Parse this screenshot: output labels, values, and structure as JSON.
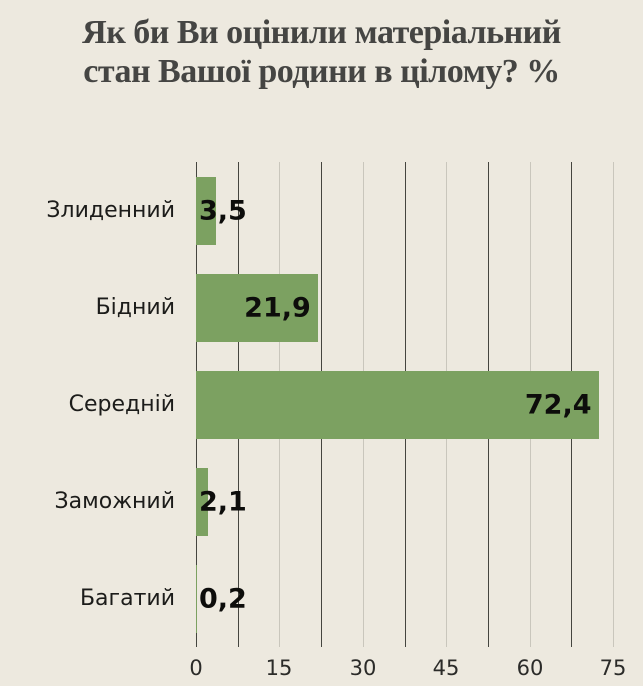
{
  "title": {
    "line1": "Як би Ви оцінили матеріальний",
    "line2": "стан Вашої родини в цілому? %"
  },
  "chart_data": {
    "type": "bar",
    "orientation": "horizontal",
    "title": "Як би Ви оцінили матеріальний стан Вашої родини в цілому? %",
    "categories": [
      "Злиденний",
      "Бідний",
      "Середній",
      "Заможний",
      "Багатий"
    ],
    "values": [
      3.5,
      21.9,
      72.4,
      2.1,
      0.2
    ],
    "value_labels": [
      "3,5",
      "21,9",
      "72,4",
      "2,1",
      "0,2"
    ],
    "xlabel": "",
    "ylabel": "",
    "xlim": [
      0,
      75
    ],
    "x_ticks": [
      0,
      15,
      30,
      45,
      60,
      75
    ],
    "x_tick_labels": [
      "0",
      "15",
      "30",
      "45",
      "60",
      "75"
    ],
    "gridline_step": 7.5,
    "grid": "vertical",
    "legend": "none"
  },
  "colors": {
    "background": "#EDE9DF",
    "bar": "#7CA161",
    "title_text": "#454543",
    "category_text": "#1C1C1A",
    "value_text": "#0D0D0B",
    "tick_text": "#2B2B29",
    "grid_at_labeled_ticks": "#C9C6BC",
    "grid_between_ticks": "#45453F"
  }
}
